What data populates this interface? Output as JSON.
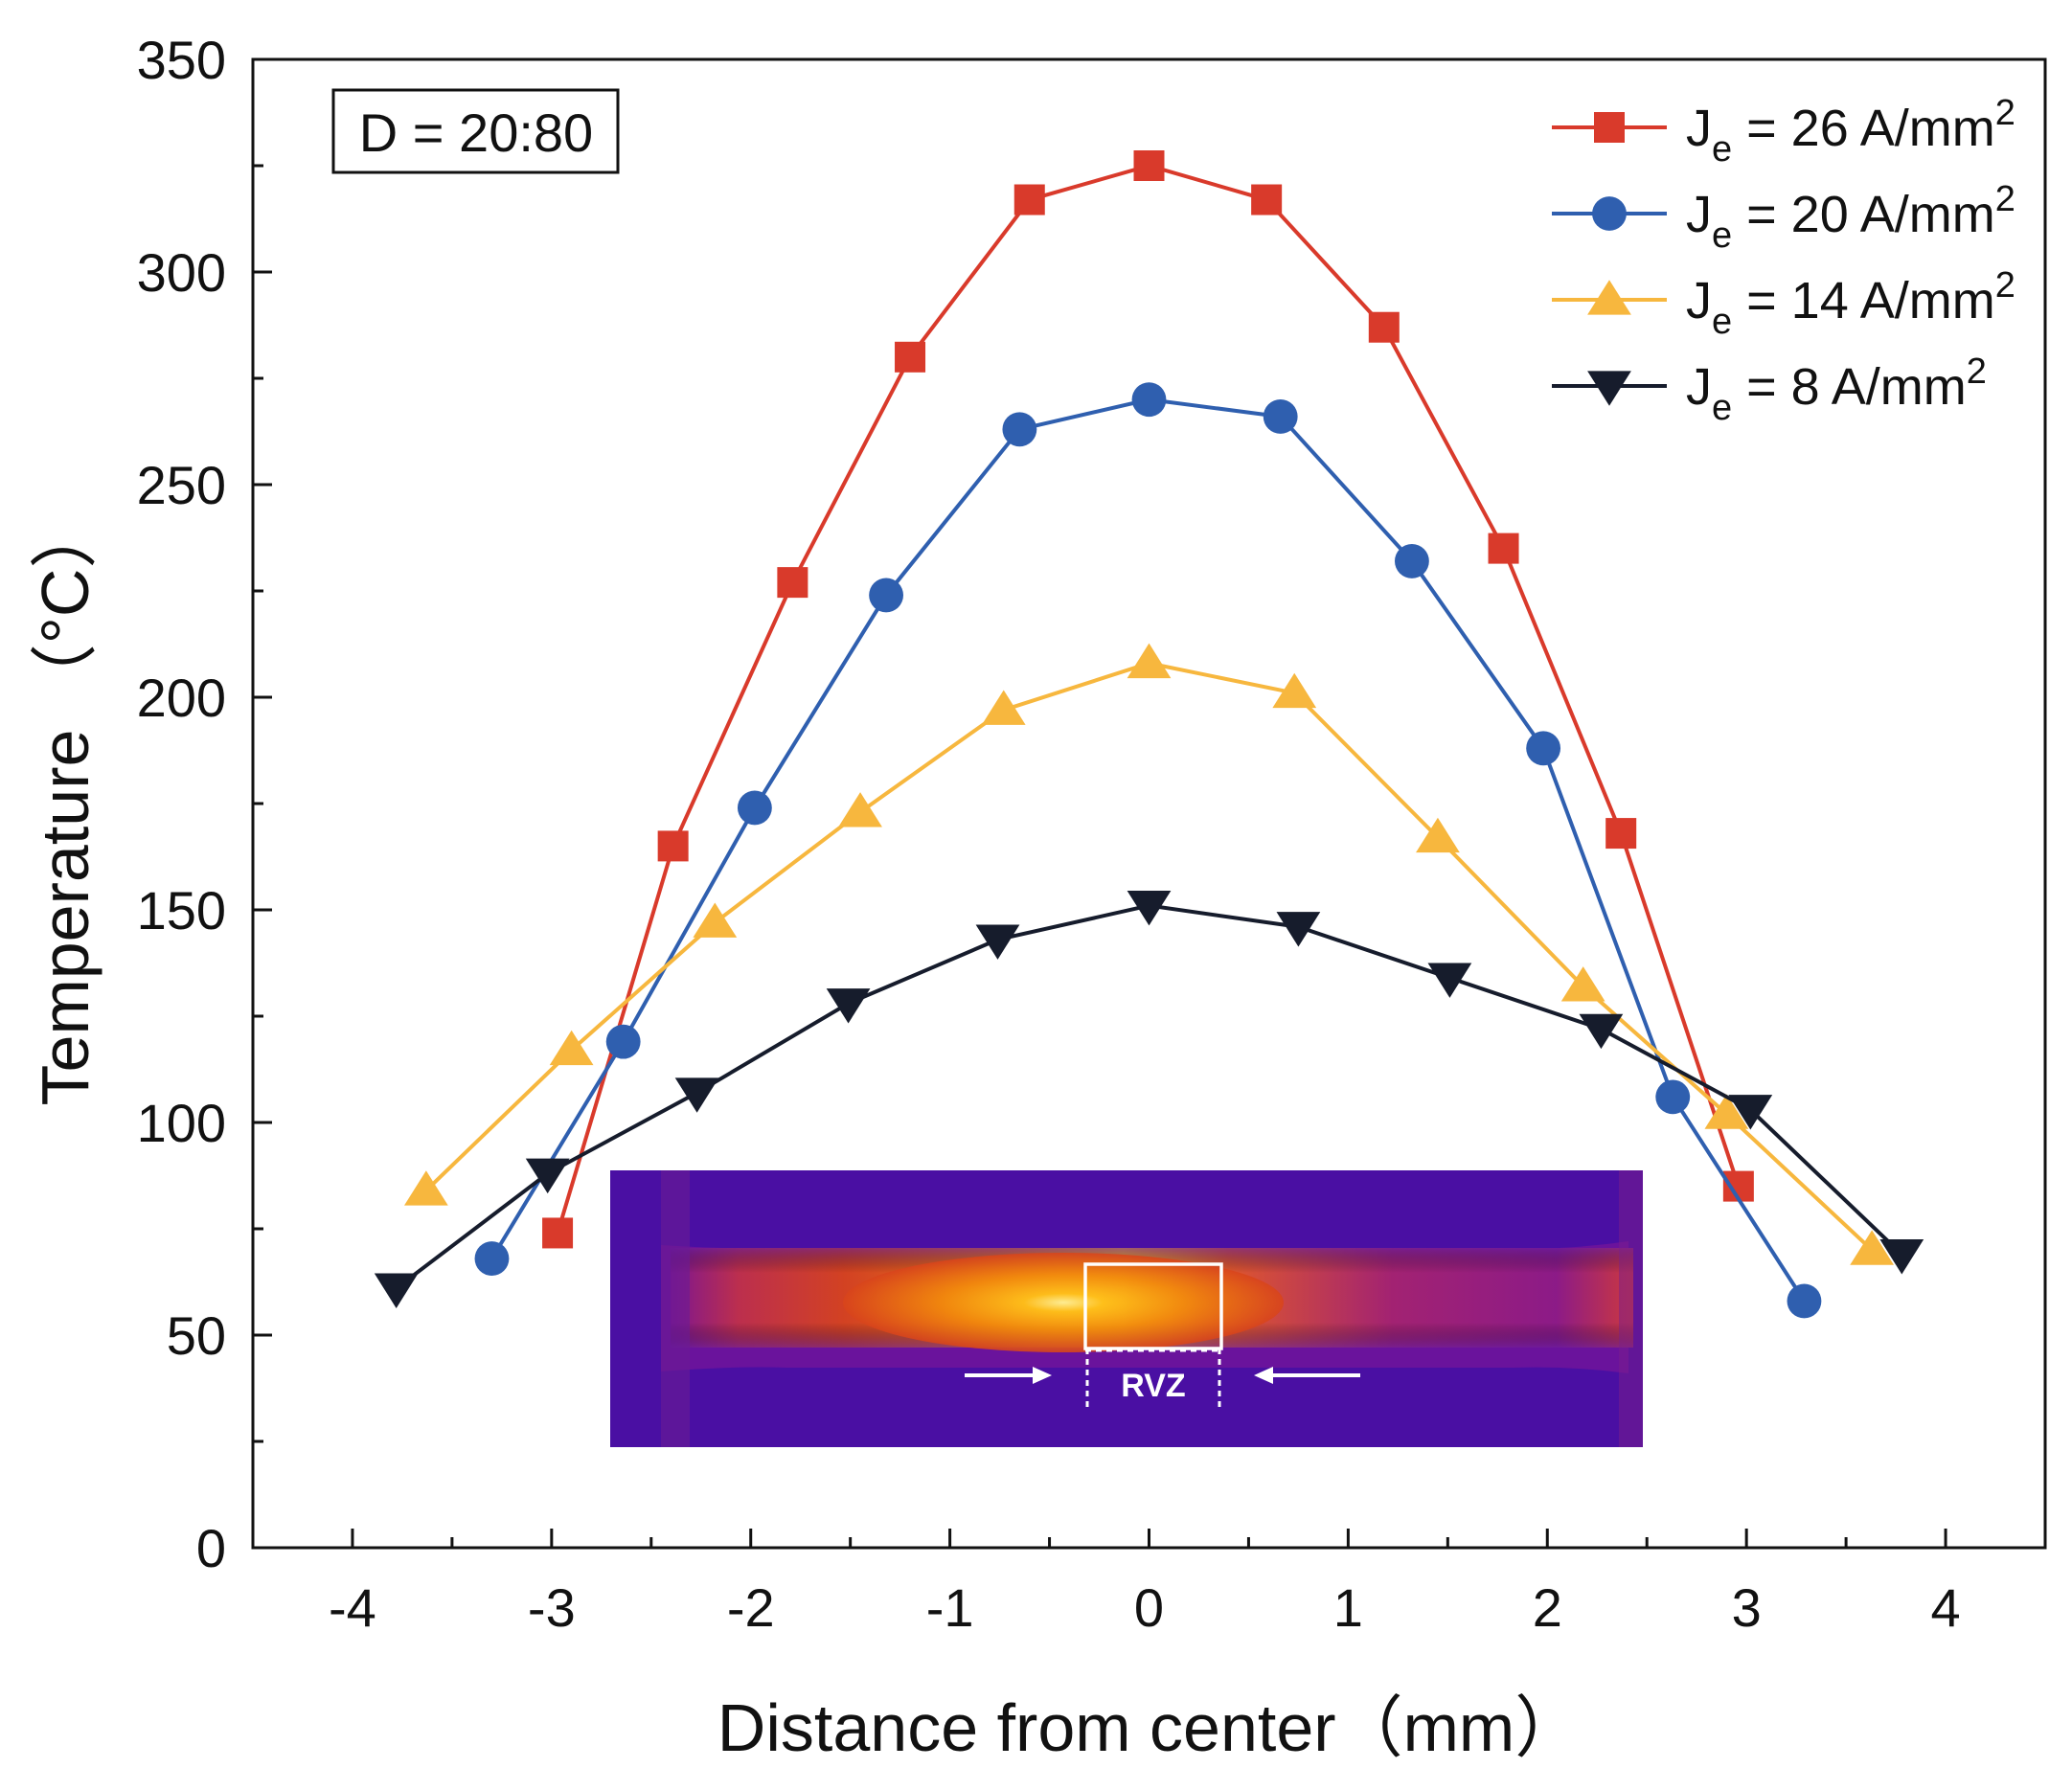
{
  "chart_data": {
    "type": "line",
    "title": "",
    "xlabel": "Distance from center（mm）",
    "ylabel": "Temperature （°C）",
    "xlim": [
      -4.5,
      4.5
    ],
    "ylim": [
      0,
      350
    ],
    "xticks": [
      -4,
      -3,
      -2,
      -1,
      0,
      1,
      2,
      3,
      4
    ],
    "yticks": [
      0,
      50,
      100,
      150,
      200,
      250,
      300,
      350
    ],
    "grid": false,
    "legend_position": "top-right",
    "annotation": "D = 20:80",
    "series": [
      {
        "name": "J_e = 26 A/mm^2",
        "name_parts": {
          "prefix": "J",
          "sub": "e",
          "mid": " = 26 A/mm",
          "sup": "2"
        },
        "color": "#d93a2b",
        "marker": "square",
        "x": [
          -2.97,
          -2.39,
          -1.79,
          -1.2,
          -0.6,
          0.0,
          0.59,
          1.18,
          1.78,
          2.37,
          2.96
        ],
        "y": [
          74,
          165,
          227,
          280,
          317,
          325,
          317,
          287,
          235,
          168,
          85
        ]
      },
      {
        "name": "J_e = 20 A/mm^2",
        "name_parts": {
          "prefix": "J",
          "sub": "e",
          "mid": " = 20 A/mm",
          "sup": "2"
        },
        "color": "#2f5faf",
        "marker": "circle",
        "x": [
          -3.3,
          -2.64,
          -1.98,
          -1.32,
          -0.65,
          0.0,
          0.66,
          1.32,
          1.98,
          2.63,
          3.29
        ],
        "y": [
          68,
          119,
          174,
          224,
          263,
          270,
          266,
          232,
          188,
          106,
          58
        ]
      },
      {
        "name": "J_e = 14 A/mm^2",
        "name_parts": {
          "prefix": "J",
          "sub": "e",
          "mid": " = 14 A/mm",
          "sup": "2"
        },
        "color": "#f7b73e",
        "marker": "triangle-up",
        "x": [
          -3.63,
          -2.9,
          -2.18,
          -1.45,
          -0.73,
          0.0,
          0.73,
          1.45,
          2.18,
          2.9,
          3.63
        ],
        "y": [
          84,
          117,
          147,
          173,
          197,
          208,
          201,
          167,
          132,
          102,
          70
        ]
      },
      {
        "name": "J_e = 8 A/mm^2",
        "name_parts": {
          "prefix": "J",
          "sub": "e",
          "mid": " = 8 A/mm",
          "sup": "2"
        },
        "color": "#161c2c",
        "marker": "triangle-down",
        "x": [
          -3.78,
          -3.02,
          -2.27,
          -1.51,
          -0.76,
          0.0,
          0.75,
          1.51,
          2.27,
          3.02,
          3.78
        ],
        "y": [
          61,
          88,
          107,
          128,
          143,
          151,
          146,
          134,
          122,
          103,
          69
        ]
      }
    ],
    "inset": {
      "type": "thermal image",
      "label": "RVZ",
      "background_color": "#4a0fa3",
      "hot_color": "#ffb000"
    }
  }
}
